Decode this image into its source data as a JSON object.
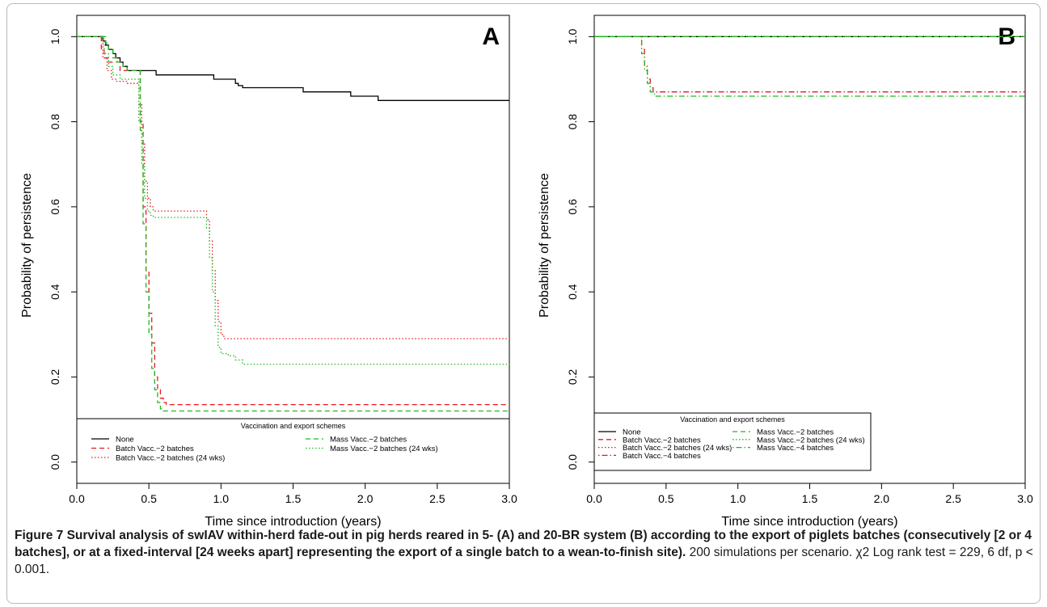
{
  "figure": {
    "caption_bold": "Figure 7  Survival analysis of swIAV within-herd fade-out in pig herds reared in 5- (A) and 20-BR system (B) according to the export of piglets batches (consecutively [2 or 4 batches], or at a fixed-interval [24 weeks apart] representing the export of a single batch to a wean-to-finish site).",
    "caption_normal": " 200 simulations per scenario. χ2 Log rank test = 229, 6 df, p < 0.001."
  },
  "chart_data": [
    {
      "type": "line",
      "panel_label": "A",
      "xlabel": "Time since introduction (years)",
      "ylabel": "Probability of persistence",
      "xlim": [
        0,
        3
      ],
      "ylim": [
        -0.05,
        1.05
      ],
      "x_ticks": [
        "0.0",
        "0.5",
        "1.0",
        "1.5",
        "2.0",
        "2.5",
        "3.0"
      ],
      "y_ticks": [
        "0.0",
        "0.2",
        "0.4",
        "0.6",
        "0.8",
        "1.0"
      ],
      "legend_title": "Vaccination and export schemes",
      "legend_position": "bottom",
      "series": [
        {
          "name": "None",
          "color": "#000000",
          "dash": "solid",
          "points": [
            [
              0,
              1.0
            ],
            [
              0.16,
              1.0
            ],
            [
              0.18,
              0.99
            ],
            [
              0.2,
              0.98
            ],
            [
              0.22,
              0.97
            ],
            [
              0.25,
              0.96
            ],
            [
              0.27,
              0.95
            ],
            [
              0.3,
              0.94
            ],
            [
              0.32,
              0.93
            ],
            [
              0.35,
              0.92
            ],
            [
              0.5,
              0.92
            ],
            [
              0.55,
              0.91
            ],
            [
              0.9,
              0.91
            ],
            [
              0.95,
              0.9
            ],
            [
              1.08,
              0.9
            ],
            [
              1.1,
              0.89
            ],
            [
              1.12,
              0.885
            ],
            [
              1.15,
              0.88
            ],
            [
              1.55,
              0.88
            ],
            [
              1.57,
              0.87
            ],
            [
              1.88,
              0.87
            ],
            [
              1.9,
              0.86
            ],
            [
              2.07,
              0.86
            ],
            [
              2.09,
              0.85
            ],
            [
              3.0,
              0.85
            ]
          ]
        },
        {
          "name": "Batch Vacc.−2 batches",
          "color": "#e8191e",
          "dash": "dashed",
          "points": [
            [
              0,
              1.0
            ],
            [
              0.15,
              1.0
            ],
            [
              0.17,
              0.97
            ],
            [
              0.19,
              0.95
            ],
            [
              0.22,
              0.94
            ],
            [
              0.3,
              0.92
            ],
            [
              0.42,
              0.92
            ],
            [
              0.44,
              0.8
            ],
            [
              0.46,
              0.6
            ],
            [
              0.48,
              0.45
            ],
            [
              0.5,
              0.35
            ],
            [
              0.52,
              0.28
            ],
            [
              0.54,
              0.2
            ],
            [
              0.56,
              0.17
            ],
            [
              0.58,
              0.15
            ],
            [
              0.6,
              0.14
            ],
            [
              0.62,
              0.135
            ],
            [
              3.0,
              0.135
            ]
          ]
        },
        {
          "name": "Batch Vacc.−2 batches (24 wks)",
          "color": "#e8191e",
          "dash": "dotted",
          "points": [
            [
              0,
              1.0
            ],
            [
              0.16,
              1.0
            ],
            [
              0.18,
              0.95
            ],
            [
              0.21,
              0.92
            ],
            [
              0.24,
              0.9
            ],
            [
              0.27,
              0.895
            ],
            [
              0.32,
              0.895
            ],
            [
              0.35,
              0.89
            ],
            [
              0.41,
              0.89
            ],
            [
              0.43,
              0.84
            ],
            [
              0.45,
              0.75
            ],
            [
              0.47,
              0.66
            ],
            [
              0.49,
              0.62
            ],
            [
              0.51,
              0.6
            ],
            [
              0.53,
              0.59
            ],
            [
              0.88,
              0.59
            ],
            [
              0.9,
              0.57
            ],
            [
              0.92,
              0.52
            ],
            [
              0.94,
              0.45
            ],
            [
              0.96,
              0.38
            ],
            [
              0.98,
              0.33
            ],
            [
              1.0,
              0.3
            ],
            [
              1.02,
              0.29
            ],
            [
              3.0,
              0.29
            ]
          ]
        },
        {
          "name": "Mass Vacc.−2 batches",
          "color": "#1fb81f",
          "dash": "dashed",
          "points": [
            [
              0,
              1.0
            ],
            [
              0.18,
              1.0
            ],
            [
              0.2,
              0.985
            ],
            [
              0.22,
              0.97
            ],
            [
              0.25,
              0.95
            ],
            [
              0.28,
              0.94
            ],
            [
              0.32,
              0.93
            ],
            [
              0.35,
              0.92
            ],
            [
              0.42,
              0.92
            ],
            [
              0.44,
              0.78
            ],
            [
              0.46,
              0.56
            ],
            [
              0.48,
              0.4
            ],
            [
              0.5,
              0.3
            ],
            [
              0.52,
              0.22
            ],
            [
              0.54,
              0.17
            ],
            [
              0.56,
              0.14
            ],
            [
              0.58,
              0.125
            ],
            [
              0.6,
              0.12
            ],
            [
              3.0,
              0.12
            ]
          ]
        },
        {
          "name": "Mass Vacc.−2 batches (24 wks)",
          "color": "#1fb81f",
          "dash": "dotted",
          "points": [
            [
              0,
              1.0
            ],
            [
              0.17,
              1.0
            ],
            [
              0.19,
              0.96
            ],
            [
              0.22,
              0.93
            ],
            [
              0.25,
              0.91
            ],
            [
              0.3,
              0.9
            ],
            [
              0.35,
              0.9
            ],
            [
              0.41,
              0.9
            ],
            [
              0.43,
              0.8
            ],
            [
              0.45,
              0.7
            ],
            [
              0.47,
              0.62
            ],
            [
              0.49,
              0.59
            ],
            [
              0.51,
              0.58
            ],
            [
              0.53,
              0.575
            ],
            [
              0.88,
              0.575
            ],
            [
              0.9,
              0.55
            ],
            [
              0.92,
              0.48
            ],
            [
              0.94,
              0.4
            ],
            [
              0.96,
              0.32
            ],
            [
              0.98,
              0.27
            ],
            [
              1.0,
              0.255
            ],
            [
              1.05,
              0.25
            ],
            [
              1.1,
              0.24
            ],
            [
              1.15,
              0.23
            ],
            [
              3.0,
              0.23
            ]
          ]
        }
      ]
    },
    {
      "type": "line",
      "panel_label": "B",
      "xlabel": "Time since introduction (years)",
      "ylabel": "Probability of persistence",
      "xlim": [
        0,
        3
      ],
      "ylim": [
        -0.05,
        1.05
      ],
      "x_ticks": [
        "0.0",
        "0.5",
        "1.0",
        "1.5",
        "2.0",
        "2.5",
        "3.0"
      ],
      "y_ticks": [
        "0.0",
        "0.2",
        "0.4",
        "0.6",
        "0.8",
        "1.0"
      ],
      "legend_title": "Vaccination and export schemes",
      "legend_position": "bottom-left",
      "series": [
        {
          "name": "None",
          "color": "#000000",
          "dash": "solid",
          "points": [
            [
              0,
              1.0
            ],
            [
              3.0,
              1.0
            ]
          ]
        },
        {
          "name": "Batch Vacc.−2 batches",
          "color": "#e8191e",
          "dash": "dashed",
          "points": [
            [
              0,
              1.0
            ],
            [
              3.0,
              1.0
            ]
          ]
        },
        {
          "name": "Batch Vacc.−2 batches (24 wks)",
          "color": "#e8191e",
          "dash": "dotted",
          "points": [
            [
              0,
              1.0
            ],
            [
              3.0,
              1.0
            ]
          ]
        },
        {
          "name": "Batch Vacc.−4 batches",
          "color": "#e8191e",
          "dash": "dotdash",
          "points": [
            [
              0,
              1.0
            ],
            [
              0.32,
              1.0
            ],
            [
              0.33,
              0.97
            ],
            [
              0.35,
              0.93
            ],
            [
              0.37,
              0.9
            ],
            [
              0.39,
              0.88
            ],
            [
              0.41,
              0.87
            ],
            [
              3.0,
              0.87
            ]
          ]
        },
        {
          "name": "Mass Vacc.−2 batches",
          "color": "#1fb81f",
          "dash": "dashed",
          "points": [
            [
              0,
              1.0
            ],
            [
              3.0,
              1.0
            ]
          ]
        },
        {
          "name": "Mass Vacc.−2 batches (24 wks)",
          "color": "#1fb81f",
          "dash": "dotted",
          "points": [
            [
              0,
              1.0
            ],
            [
              3.0,
              1.0
            ]
          ]
        },
        {
          "name": "Mass Vacc.−4 batches",
          "color": "#1fb81f",
          "dash": "dotdash",
          "points": [
            [
              0,
              1.0
            ],
            [
              0.32,
              1.0
            ],
            [
              0.33,
              0.96
            ],
            [
              0.35,
              0.92
            ],
            [
              0.37,
              0.89
            ],
            [
              0.39,
              0.87
            ],
            [
              0.42,
              0.86
            ],
            [
              3.0,
              0.86
            ]
          ]
        }
      ]
    }
  ]
}
